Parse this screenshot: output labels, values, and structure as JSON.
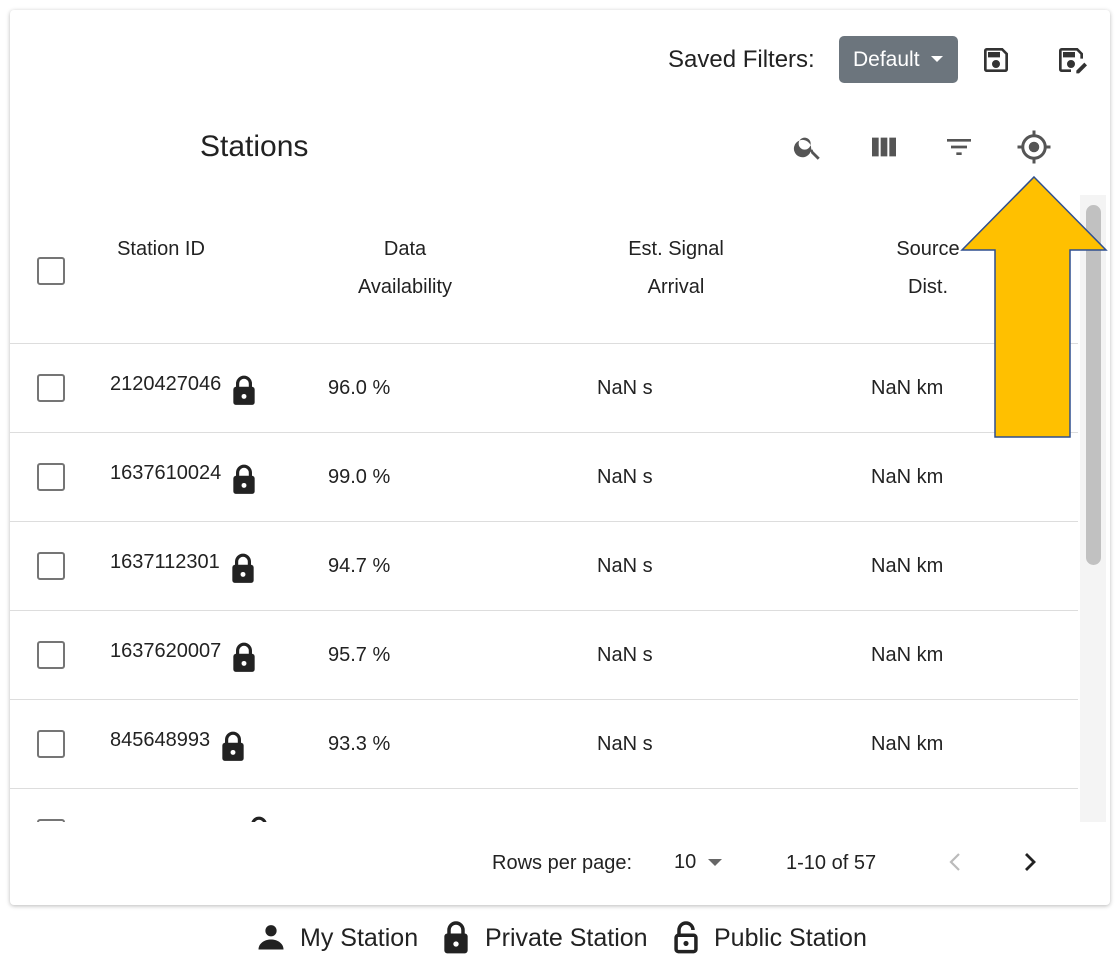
{
  "saved_filters": {
    "label": "Saved Filters:",
    "button": "Default"
  },
  "toolbar": {
    "title": "Stations"
  },
  "table": {
    "headers": [
      "Station ID",
      "Data Availability",
      "Est. Signal Arrival",
      "Source Dist."
    ],
    "rows": [
      [
        "2120427046",
        "96.0 %",
        "NaN s",
        "NaN km"
      ],
      [
        "1637610024",
        "99.0 %",
        "NaN s",
        "NaN km"
      ],
      [
        "1637112301",
        "94.7 %",
        "NaN s",
        "NaN km"
      ],
      [
        "1637620007",
        "95.7 %",
        "NaN s",
        "NaN km"
      ],
      [
        "845648993",
        "93.3 %",
        "NaN s",
        "NaN km"
      ]
    ]
  },
  "pagination": {
    "rows_per_page_label": "Rows per page:",
    "rows_per_page": "10",
    "range": "1-10 of 57"
  },
  "legend": [
    "My Station",
    "Private Station",
    "Public Station"
  ]
}
